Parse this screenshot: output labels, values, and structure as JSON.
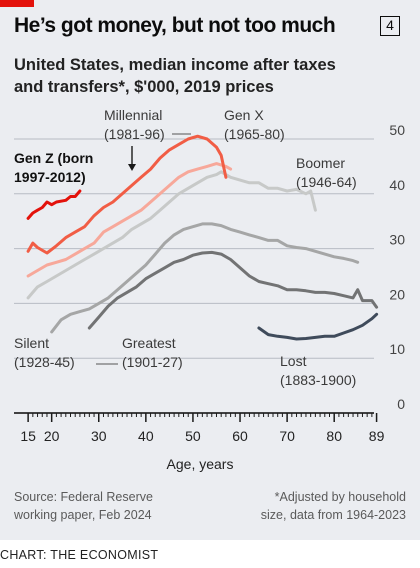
{
  "header": {
    "title": "He’s got money, but not too much",
    "badge": "4",
    "subtitle": "United States, median income after taxes and transfers*, $'000, 2019 prices"
  },
  "footer": {
    "source_line1": "Source: Federal Reserve",
    "source_line2": "working paper, Feb 2024",
    "note_line1": "*Adjusted by household",
    "note_line2": "size, data from 1964-2023",
    "credit": "CHART: THE ECONOMIST"
  },
  "colors": {
    "background": "#ebedf1",
    "accent_red": "#e3120b",
    "gen_z": "#e3120b",
    "millennial": "#f15d45",
    "gen_x": "#f7a89a",
    "boomer": "#c7c9c8",
    "silent": "#a5a6a6",
    "greatest": "#727374",
    "lost": "#3f4b5b"
  },
  "chart_data": {
    "type": "line",
    "xlabel": "Age, years",
    "xlim": [
      12,
      91
    ],
    "ylim": [
      0,
      52
    ],
    "x_ticks": [
      "15",
      "20",
      "30",
      "40",
      "50",
      "60",
      "70",
      "80",
      "89"
    ],
    "y_ticks": [
      "0",
      "10",
      "20",
      "30",
      "40",
      "50"
    ],
    "series": [
      {
        "name": "Lost (1883-1900)",
        "label_lines": [
          "Lost",
          "(1883-1900)"
        ],
        "color": "#3f4b5b",
        "points": [
          [
            64,
            15.5
          ],
          [
            66,
            14.3
          ],
          [
            68,
            14
          ],
          [
            70,
            13.8
          ],
          [
            72,
            13.5
          ],
          [
            74,
            13.6
          ],
          [
            76,
            13.8
          ],
          [
            78,
            14
          ],
          [
            80,
            14
          ],
          [
            82,
            14.6
          ],
          [
            84,
            15.2
          ],
          [
            86,
            16
          ],
          [
            88,
            17.2
          ],
          [
            89,
            18
          ]
        ]
      },
      {
        "name": "Greatest (1901-27)",
        "label_lines": [
          "Greatest",
          "(1901-27)"
        ],
        "color": "#727374",
        "points": [
          [
            28,
            15.5
          ],
          [
            30,
            17.5
          ],
          [
            32,
            19.5
          ],
          [
            34,
            21
          ],
          [
            36,
            22
          ],
          [
            38,
            23
          ],
          [
            40,
            24.5
          ],
          [
            42,
            25.5
          ],
          [
            44,
            26.5
          ],
          [
            46,
            27.5
          ],
          [
            48,
            28
          ],
          [
            50,
            28.8
          ],
          [
            52,
            29.2
          ],
          [
            54,
            29.3
          ],
          [
            56,
            29
          ],
          [
            58,
            28
          ],
          [
            60,
            26.5
          ],
          [
            62,
            25
          ],
          [
            64,
            24
          ],
          [
            66,
            23.6
          ],
          [
            68,
            23.2
          ],
          [
            70,
            22.5
          ],
          [
            72,
            22.5
          ],
          [
            74,
            22.3
          ],
          [
            76,
            22
          ],
          [
            78,
            22
          ],
          [
            80,
            21.8
          ],
          [
            82,
            21.4
          ],
          [
            84,
            21
          ],
          [
            85,
            22.5
          ],
          [
            86,
            20.5
          ],
          [
            87,
            20.5
          ],
          [
            88,
            20.5
          ],
          [
            89,
            19.3
          ]
        ]
      },
      {
        "name": "Silent (1928-45)",
        "label_lines": [
          "Silent",
          "(1928-45)"
        ],
        "color": "#a5a6a6",
        "points": [
          [
            20,
            14.8
          ],
          [
            22,
            17
          ],
          [
            24,
            18
          ],
          [
            26,
            18.5
          ],
          [
            28,
            19
          ],
          [
            30,
            20
          ],
          [
            32,
            21
          ],
          [
            34,
            22.5
          ],
          [
            36,
            24
          ],
          [
            38,
            25.5
          ],
          [
            40,
            27
          ],
          [
            42,
            29
          ],
          [
            44,
            31
          ],
          [
            46,
            32.5
          ],
          [
            48,
            33.5
          ],
          [
            50,
            34
          ],
          [
            52,
            34.5
          ],
          [
            54,
            34.5
          ],
          [
            56,
            34.2
          ],
          [
            58,
            33.5
          ],
          [
            60,
            33
          ],
          [
            62,
            32.5
          ],
          [
            64,
            32
          ],
          [
            66,
            31.5
          ],
          [
            68,
            31.5
          ],
          [
            70,
            30.5
          ],
          [
            72,
            30.2
          ],
          [
            74,
            30
          ],
          [
            76,
            29.5
          ],
          [
            78,
            29
          ],
          [
            80,
            28.5
          ],
          [
            82,
            28.2
          ],
          [
            84,
            27.8
          ],
          [
            85,
            27.5
          ]
        ]
      },
      {
        "name": "Boomer (1946-64)",
        "label_lines": [
          "Boomer",
          "(1946-64)"
        ],
        "color": "#c7c9c8",
        "points": [
          [
            15,
            21
          ],
          [
            17,
            23
          ],
          [
            19,
            24
          ],
          [
            21,
            25
          ],
          [
            23,
            26
          ],
          [
            25,
            27
          ],
          [
            27,
            28
          ],
          [
            29,
            29
          ],
          [
            31,
            30
          ],
          [
            33,
            31
          ],
          [
            35,
            32
          ],
          [
            37,
            33.5
          ],
          [
            39,
            34.5
          ],
          [
            41,
            35.5
          ],
          [
            43,
            37
          ],
          [
            45,
            38.5
          ],
          [
            47,
            40
          ],
          [
            49,
            41
          ],
          [
            51,
            42
          ],
          [
            53,
            43
          ],
          [
            55,
            43.5
          ],
          [
            56,
            44
          ],
          [
            58,
            43
          ],
          [
            60,
            42.5
          ],
          [
            62,
            42
          ],
          [
            64,
            42
          ],
          [
            66,
            41
          ],
          [
            68,
            41
          ],
          [
            70,
            40.5
          ],
          [
            72,
            40.8
          ],
          [
            74,
            40
          ],
          [
            75,
            40.5
          ],
          [
            76,
            37
          ]
        ]
      },
      {
        "name": "Gen X (1965-80)",
        "label_lines": [
          "Gen X",
          "(1965-80)"
        ],
        "color": "#f7a89a",
        "points": [
          [
            15,
            25
          ],
          [
            17,
            26
          ],
          [
            19,
            27
          ],
          [
            21,
            27.5
          ],
          [
            23,
            28
          ],
          [
            25,
            29
          ],
          [
            27,
            30
          ],
          [
            29,
            31
          ],
          [
            31,
            33
          ],
          [
            33,
            34
          ],
          [
            35,
            35
          ],
          [
            37,
            36
          ],
          [
            39,
            37
          ],
          [
            41,
            38.5
          ],
          [
            43,
            40
          ],
          [
            45,
            41.5
          ],
          [
            47,
            43
          ],
          [
            49,
            44
          ],
          [
            51,
            44.5
          ],
          [
            53,
            45
          ],
          [
            55,
            45.5
          ],
          [
            57,
            45
          ],
          [
            58,
            44.5
          ]
        ]
      },
      {
        "name": "Millennial (1981-96)",
        "label_lines": [
          "Millennial",
          "(1981-96)"
        ],
        "color": "#f15d45",
        "points": [
          [
            15,
            29.5
          ],
          [
            16,
            31
          ],
          [
            17,
            30.2
          ],
          [
            19,
            29.2
          ],
          [
            21,
            30.5
          ],
          [
            23,
            32
          ],
          [
            25,
            33
          ],
          [
            27,
            34
          ],
          [
            29,
            36
          ],
          [
            31,
            37.5
          ],
          [
            33,
            38.5
          ],
          [
            35,
            40
          ],
          [
            37,
            41.5
          ],
          [
            39,
            43
          ],
          [
            41,
            44.5
          ],
          [
            43,
            46.5
          ],
          [
            45,
            48
          ],
          [
            47,
            49
          ],
          [
            49,
            50
          ],
          [
            51,
            50.5
          ],
          [
            53,
            50
          ],
          [
            55,
            48.5
          ],
          [
            56,
            47
          ],
          [
            57,
            43
          ]
        ]
      },
      {
        "name": "Gen Z (born 1997-2012)",
        "label_lines": [
          "Gen Z (born",
          "1997-2012)"
        ],
        "color": "#e3120b",
        "points": [
          [
            15,
            35.5
          ],
          [
            16,
            36.5
          ],
          [
            17,
            37
          ],
          [
            18,
            37.5
          ],
          [
            19,
            38.5
          ],
          [
            20,
            38
          ],
          [
            21,
            38.5
          ],
          [
            23,
            38.8
          ],
          [
            24,
            39.5
          ],
          [
            25,
            39.5
          ],
          [
            26,
            40.5
          ]
        ]
      }
    ]
  }
}
